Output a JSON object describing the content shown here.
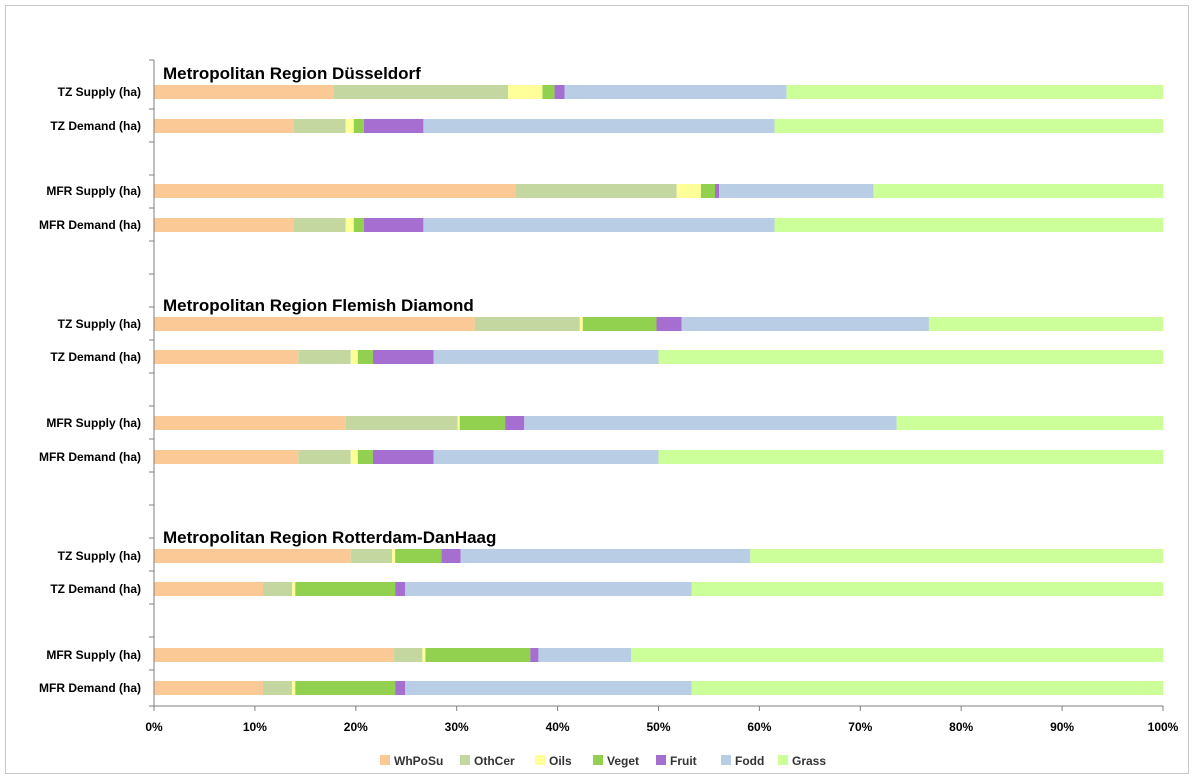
{
  "chart_data": {
    "type": "bar",
    "orientation": "horizontal",
    "stacked": "percent",
    "x_ticks": [
      "0%",
      "10%",
      "20%",
      "30%",
      "40%",
      "50%",
      "60%",
      "70%",
      "80%",
      "90%",
      "100%"
    ],
    "xlim": [
      0,
      100
    ],
    "grid": false,
    "legend": "bottom",
    "series": [
      {
        "name": "WhPoSu",
        "color": "#FAC996"
      },
      {
        "name": "OthCer",
        "color": "#C4D7A0"
      },
      {
        "name": "Oils",
        "color": "#FFFF99"
      },
      {
        "name": "Veget",
        "color": "#92D050"
      },
      {
        "name": "Fruit",
        "color": "#A56ED0"
      },
      {
        "name": "Fodd",
        "color": "#B9CDE5"
      },
      {
        "name": "Grass",
        "color": "#CCFF99"
      }
    ],
    "groups": [
      {
        "title": "Metropolitan  Region Düsseldorf",
        "bars": [
          {
            "label": "TZ Supply (ha)",
            "values": [
              17.8,
              17.3,
              3.4,
              1.2,
              1.0,
              22.0,
              37.3
            ]
          },
          {
            "label": "TZ Demand (ha)",
            "values": [
              13.8,
              5.2,
              0.8,
              1.0,
              5.9,
              34.8,
              38.5
            ]
          },
          {
            "label": "MFR Supply (ha)",
            "values": [
              35.8,
              16.0,
              2.4,
              1.4,
              0.4,
              15.3,
              28.7
            ]
          },
          {
            "label": "MFR Demand (ha)",
            "values": [
              13.8,
              5.2,
              0.8,
              1.0,
              5.9,
              34.8,
              38.5
            ]
          }
        ]
      },
      {
        "title": "Metropolitan  Region Flemish Diamond",
        "bars": [
          {
            "label": "TZ Supply (ha)",
            "values": [
              31.8,
              10.4,
              0.3,
              7.3,
              2.5,
              24.5,
              23.2
            ]
          },
          {
            "label": "TZ Demand (ha)",
            "values": [
              14.3,
              5.2,
              0.7,
              1.5,
              6.0,
              22.3,
              50.0
            ]
          },
          {
            "label": "MFR Supply (ha)",
            "values": [
              19.0,
              11.1,
              0.2,
              4.5,
              1.9,
              36.9,
              26.4
            ]
          },
          {
            "label": "MFR Demand (ha)",
            "values": [
              14.3,
              5.2,
              0.7,
              1.5,
              6.0,
              22.3,
              50.0
            ]
          }
        ]
      },
      {
        "title": "Metropolitan  Region Rotterdam-DanHaag",
        "bars": [
          {
            "label": "TZ Supply (ha)",
            "values": [
              19.5,
              4.1,
              0.3,
              4.6,
              1.9,
              28.7,
              40.9
            ]
          },
          {
            "label": "TZ Demand (ha)",
            "values": [
              10.8,
              2.9,
              0.3,
              9.9,
              1.0,
              28.4,
              46.7
            ]
          },
          {
            "label": "MFR Supply (ha)",
            "values": [
              23.8,
              2.8,
              0.3,
              10.4,
              0.8,
              9.2,
              52.7
            ]
          },
          {
            "label": "MFR Demand (ha)",
            "values": [
              10.8,
              2.9,
              0.3,
              9.9,
              1.0,
              28.4,
              46.7
            ]
          }
        ]
      }
    ]
  }
}
